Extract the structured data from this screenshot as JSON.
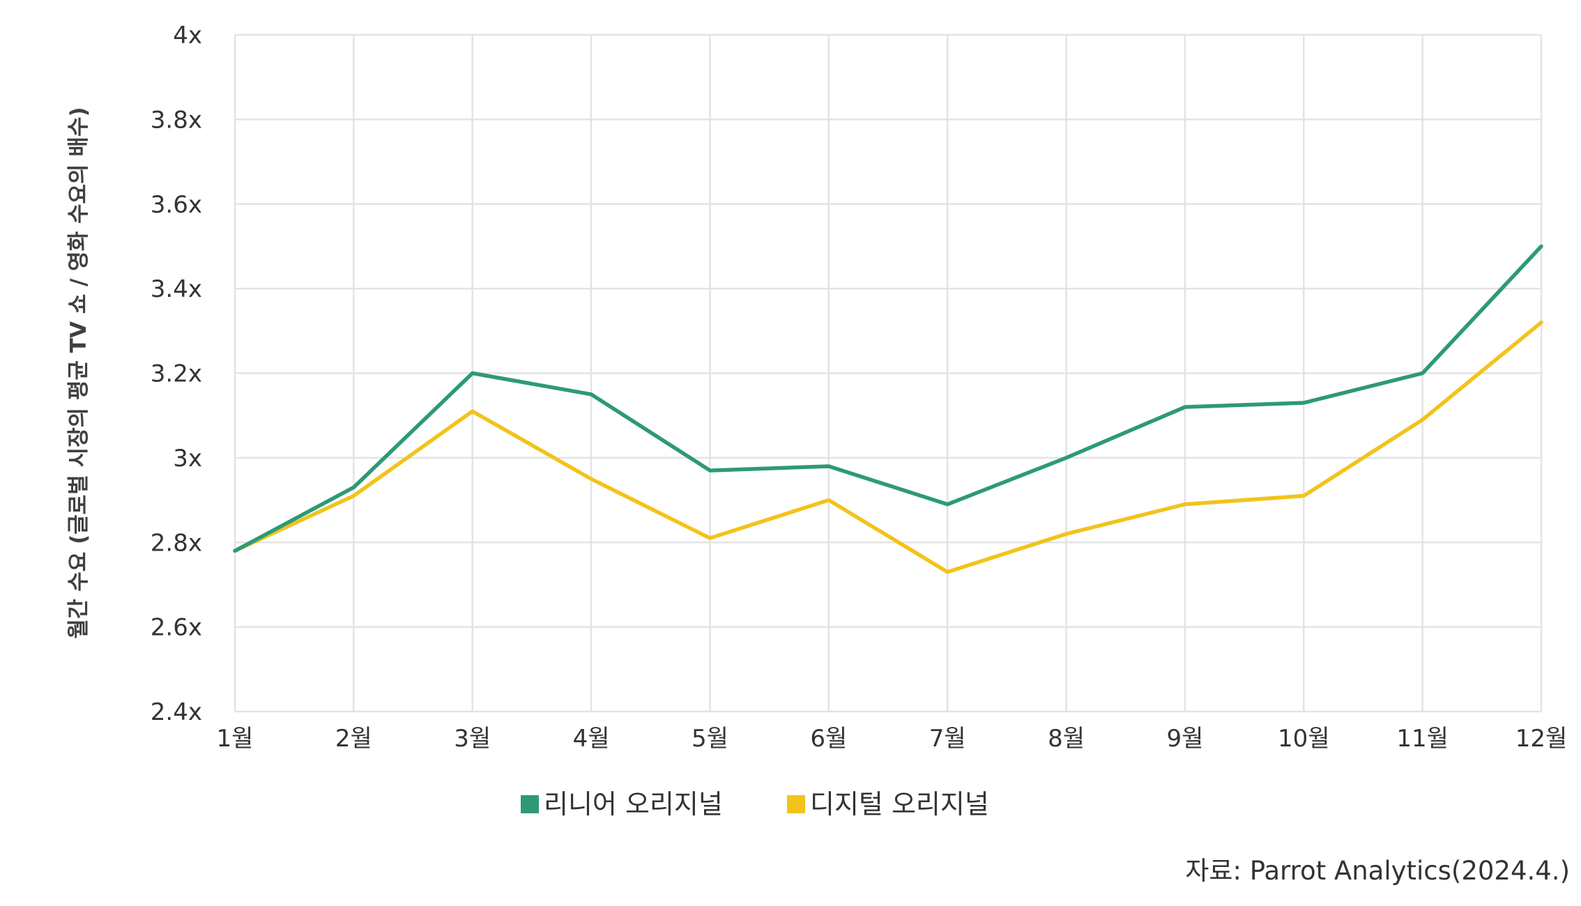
{
  "chart_data": {
    "type": "line",
    "title": "",
    "xlabel": "",
    "ylabel": "월간 수요 (글로벌 시장의 평균 TV 쇼 / 영화 수요의 배수)",
    "categories": [
      "1월",
      "2월",
      "3월",
      "4월",
      "5월",
      "6월",
      "7월",
      "8월",
      "9월",
      "10월",
      "11월",
      "12월"
    ],
    "y_ticks": [
      {
        "value": 2.4,
        "label": "2.4x"
      },
      {
        "value": 2.6,
        "label": "2.6x"
      },
      {
        "value": 2.8,
        "label": "2.8x"
      },
      {
        "value": 3.0,
        "label": "3x"
      },
      {
        "value": 3.2,
        "label": "3.2x"
      },
      {
        "value": 3.4,
        "label": "3.4x"
      },
      {
        "value": 3.6,
        "label": "3.6x"
      },
      {
        "value": 3.8,
        "label": "3.8x"
      },
      {
        "value": 4.0,
        "label": "4x"
      }
    ],
    "ylim": [
      2.4,
      4.0
    ],
    "grid": true,
    "legend_position": "bottom",
    "series": [
      {
        "name": "리니어 오리지널",
        "color": "#2e9977",
        "values": [
          2.78,
          2.93,
          3.2,
          3.15,
          2.97,
          2.98,
          2.89,
          3.0,
          3.12,
          3.13,
          3.2,
          3.5
        ]
      },
      {
        "name": "디지털 오리지널",
        "color": "#f2c31c",
        "values": [
          2.78,
          2.91,
          3.11,
          2.95,
          2.81,
          2.9,
          2.73,
          2.82,
          2.89,
          2.91,
          3.09,
          3.32
        ]
      }
    ],
    "source": "자료: Parrot Analytics(2024.4.)"
  }
}
